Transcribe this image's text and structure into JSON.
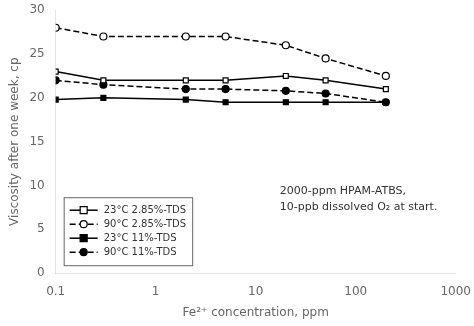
{
  "chart_data": {
    "type": "line",
    "xlabel": "Fe²⁺ concentration, ppm",
    "ylabel": "Viscosity after one week, cp",
    "annotations": [
      "2000-ppm HPAM-ATBS,",
      "10-ppb dissolved O₂ at start."
    ],
    "log": "x",
    "grid": false,
    "legend": "lower left",
    "xlim": [
      0.1,
      1000
    ],
    "ylim": [
      0,
      30
    ],
    "xticks": [
      0.1,
      1,
      10,
      100,
      1000
    ],
    "yticks": [
      0,
      5,
      10,
      15,
      20,
      25,
      30
    ],
    "series": [
      {
        "name": "23°C 2.85%-TDS",
        "color": "black",
        "marker": "square_open",
        "line_style": "solid",
        "x": [
          0.1,
          0.3,
          2.0,
          5.0,
          20.0,
          50.0,
          200.0
        ],
        "values": [
          23.0,
          22.0,
          22.0,
          22.0,
          22.5,
          22.0,
          21.0
        ]
      },
      {
        "name": "90°C 2.85%-TDS",
        "color": "black",
        "marker": "circle_open",
        "line_style": "dashed",
        "x": [
          0.1,
          0.3,
          2.0,
          5.0,
          20.0,
          50.0,
          200.0
        ],
        "values": [
          28.0,
          27.0,
          27.0,
          27.0,
          26.0,
          24.5,
          22.5
        ]
      },
      {
        "name": "23°C 11%-TDS",
        "color": "black",
        "marker": "square",
        "line_style": "solid",
        "x": [
          0.1,
          0.3,
          2.0,
          5.0,
          20.0,
          50.0,
          200.0
        ],
        "values": [
          19.8,
          20.0,
          19.8,
          19.5,
          19.5,
          19.5,
          19.5
        ]
      },
      {
        "name": "90°C 11%-TDS",
        "color": "black",
        "marker": "circle",
        "line_style": "dashed",
        "x": [
          0.1,
          0.3,
          2.0,
          5.0,
          20.0,
          50.0,
          200.0
        ],
        "values": [
          22.0,
          21.5,
          21.0,
          21.0,
          20.8,
          20.5,
          19.5
        ]
      }
    ]
  }
}
